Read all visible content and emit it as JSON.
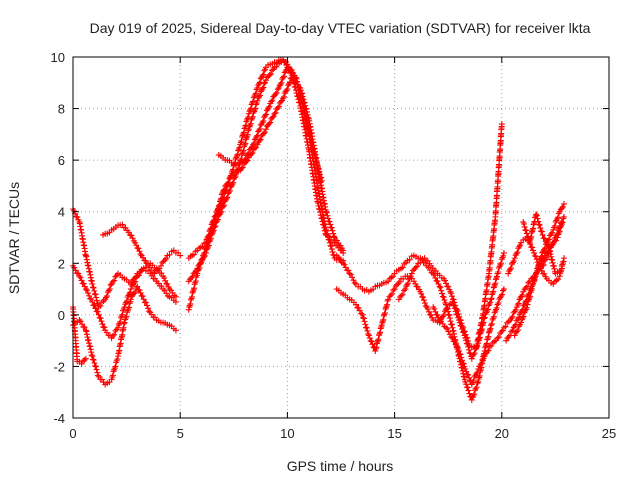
{
  "chart_data": {
    "type": "scatter",
    "title": "Day 019 of 2025, Sidereal Day-to-day VTEC variation (SDTVAR) for receiver lkta",
    "xlabel": "GPS time / hours",
    "ylabel": "SDTVAR / TECUs",
    "xlim": [
      0,
      25
    ],
    "ylim": [
      -4,
      10
    ],
    "xticks": [
      0,
      5,
      10,
      15,
      20,
      25
    ],
    "yticks": [
      -4,
      -2,
      0,
      2,
      4,
      6,
      8,
      10
    ],
    "grid": true,
    "marker": "+",
    "color": "#ff0000",
    "series": [
      {
        "x": [
          0.0,
          0.3,
          0.6,
          0.9,
          1.2,
          1.5,
          1.8,
          2.1,
          2.4,
          2.7,
          3.0,
          3.3,
          3.6,
          3.9,
          4.2,
          4.5,
          4.8
        ],
        "y": [
          4.1,
          3.6,
          2.3,
          1.2,
          0.3,
          0.6,
          1.2,
          1.6,
          1.4,
          1.2,
          1.6,
          1.8,
          1.6,
          1.3,
          1.0,
          0.7,
          0.5
        ]
      },
      {
        "x": [
          0.0,
          0.3,
          0.6,
          0.9,
          1.2,
          1.5,
          1.8,
          2.1,
          2.4,
          2.7,
          3.0,
          3.3,
          3.6,
          3.9,
          4.2,
          4.5,
          4.8
        ],
        "y": [
          1.9,
          1.5,
          1.0,
          0.5,
          0.0,
          -0.6,
          -0.9,
          -0.5,
          0.3,
          1.0,
          1.5,
          1.8,
          2.0,
          1.8,
          1.5,
          1.0,
          0.7
        ]
      },
      {
        "x": [
          0.0,
          0.3,
          0.6,
          0.9,
          1.2,
          1.5,
          1.8,
          2.1,
          2.4,
          2.7,
          3.0,
          3.3,
          3.6,
          3.9,
          4.2,
          4.5,
          4.8
        ],
        "y": [
          -0.4,
          -0.2,
          -0.6,
          -1.6,
          -2.4,
          -2.7,
          -2.5,
          -1.6,
          -0.3,
          0.6,
          1.1,
          0.6,
          0.1,
          -0.2,
          -0.3,
          -0.4,
          -0.6
        ]
      },
      {
        "x": [
          0.0,
          0.2,
          0.4,
          0.6
        ],
        "y": [
          0.3,
          -1.8,
          -1.9,
          -1.7
        ]
      },
      {
        "x": [
          1.4,
          1.7,
          2.0,
          2.3,
          2.6,
          2.9,
          3.2,
          3.5,
          3.8,
          4.1,
          4.4,
          4.7,
          5.0
        ],
        "y": [
          3.1,
          3.2,
          3.4,
          3.5,
          3.2,
          2.8,
          2.3,
          1.9,
          1.6,
          1.9,
          2.3,
          2.5,
          2.3
        ]
      },
      {
        "x": [
          5.4,
          5.8,
          6.2,
          6.6,
          7.0,
          7.4,
          7.8,
          8.2,
          8.6,
          9.0,
          9.4,
          9.8,
          10.2,
          10.6,
          11.0,
          11.4,
          11.8,
          12.2,
          12.6
        ],
        "y": [
          2.2,
          2.5,
          2.8,
          3.8,
          4.5,
          5.5,
          6.6,
          7.8,
          8.8,
          9.6,
          9.8,
          9.9,
          9.5,
          8.6,
          7.0,
          5.0,
          3.3,
          2.2,
          2.1
        ]
      },
      {
        "x": [
          5.4,
          5.8,
          6.2,
          6.6,
          7.0,
          7.4,
          7.8,
          8.2,
          8.6,
          9.0,
          9.4,
          9.8,
          10.2,
          10.6,
          11.0,
          11.4,
          11.8,
          12.2,
          12.6
        ],
        "y": [
          1.3,
          1.8,
          2.4,
          3.4,
          4.2,
          5.0,
          5.9,
          7.2,
          8.3,
          9.1,
          9.6,
          9.9,
          9.3,
          8.1,
          6.4,
          4.4,
          3.1,
          2.8,
          2.4
        ]
      },
      {
        "x": [
          5.4,
          5.8,
          6.2,
          6.6,
          7.0,
          7.4,
          7.8,
          8.2,
          8.6,
          9.0,
          9.4,
          9.8,
          10.2,
          10.6,
          11.0,
          11.4,
          11.8,
          12.2,
          12.6
        ],
        "y": [
          0.2,
          1.6,
          2.6,
          3.6,
          4.8,
          5.4,
          5.6,
          6.1,
          6.6,
          7.2,
          7.8,
          8.4,
          9.2,
          8.8,
          7.6,
          5.8,
          4.0,
          3.0,
          2.5
        ]
      },
      {
        "x": [
          6.8,
          7.2,
          7.6,
          8.0,
          8.4,
          8.8,
          9.2,
          9.6,
          10.0,
          10.4,
          10.8,
          11.2,
          11.6
        ],
        "y": [
          6.2,
          6.0,
          5.8,
          6.0,
          6.6,
          7.4,
          8.2,
          8.8,
          9.6,
          9.2,
          8.0,
          6.4,
          5.2
        ]
      },
      {
        "x": [
          12.3,
          12.6,
          12.9,
          13.2,
          13.5,
          13.8,
          14.1,
          14.4,
          14.7,
          15.0,
          15.3,
          15.6,
          15.9,
          16.2,
          16.5,
          16.8,
          17.1,
          17.4,
          17.7,
          18.0,
          18.3,
          18.6,
          18.9,
          19.2,
          19.5,
          19.8,
          20.1
        ],
        "y": [
          2.3,
          2.0,
          1.6,
          1.2,
          1.0,
          0.9,
          1.1,
          1.2,
          1.3,
          1.6,
          1.8,
          2.1,
          2.3,
          2.2,
          1.9,
          1.6,
          1.1,
          0.4,
          -0.5,
          -1.6,
          -2.6,
          -3.3,
          -2.6,
          -1.4,
          -0.4,
          0.4,
          1.0
        ]
      },
      {
        "x": [
          12.3,
          12.6,
          12.9,
          13.2,
          13.5,
          13.8,
          14.1,
          14.4,
          14.7,
          15.0,
          15.3,
          15.6,
          15.9,
          16.2,
          16.5,
          16.8,
          17.1,
          17.4,
          17.7,
          18.0,
          18.3,
          18.6,
          18.9,
          19.2,
          19.5,
          19.8,
          20.1
        ],
        "y": [
          1.0,
          0.8,
          0.6,
          0.4,
          0.0,
          -0.8,
          -1.4,
          -0.4,
          0.6,
          1.0,
          1.4,
          1.5,
          1.3,
          0.9,
          0.3,
          -0.2,
          -0.3,
          0.2,
          0.5,
          -0.2,
          -0.9,
          -1.7,
          -1.1,
          -0.1,
          0.6,
          1.6,
          2.4
        ]
      },
      {
        "x": [
          15.2,
          15.5,
          15.8,
          16.1,
          16.4,
          16.7,
          17.0,
          17.3,
          17.6,
          17.9,
          18.2,
          18.5,
          18.8,
          19.1,
          19.4,
          19.7,
          20.0
        ],
        "y": [
          0.6,
          1.0,
          1.6,
          2.0,
          2.2,
          1.9,
          1.6,
          1.4,
          0.9,
          0.2,
          -0.5,
          -1.2,
          -1.3,
          -0.1,
          1.6,
          3.8,
          7.4
        ]
      },
      {
        "x": [
          16.8,
          17.1,
          17.4,
          17.7,
          18.0,
          18.3,
          18.6,
          18.9,
          19.2,
          19.5,
          19.8,
          20.1,
          20.4,
          20.7,
          21.0,
          21.3,
          21.6,
          21.9,
          22.2,
          22.5,
          22.8
        ],
        "y": [
          0.3,
          -0.2,
          -0.5,
          -0.9,
          -1.4,
          -2.1,
          -2.7,
          -2.1,
          -1.6,
          -1.2,
          -0.9,
          -0.5,
          -0.2,
          0.3,
          0.9,
          1.3,
          1.6,
          1.9,
          2.4,
          3.0,
          3.6
        ]
      },
      {
        "x": [
          20.2,
          20.5,
          20.8,
          21.1,
          21.4,
          21.7,
          22.0,
          22.3,
          22.6,
          22.9
        ],
        "y": [
          -1.0,
          -0.6,
          -0.1,
          0.5,
          1.1,
          1.8,
          2.3,
          2.7,
          3.0,
          3.8
        ]
      },
      {
        "x": [
          20.3,
          20.6,
          20.9,
          21.2,
          21.5,
          21.8,
          22.1,
          22.4,
          22.7,
          22.9
        ],
        "y": [
          1.6,
          2.2,
          2.8,
          3.0,
          2.4,
          1.8,
          1.4,
          1.2,
          1.5,
          2.2
        ]
      },
      {
        "x": [
          20.6,
          20.9,
          21.2,
          21.5,
          21.8,
          22.1,
          22.4,
          22.7,
          22.9
        ],
        "y": [
          -0.8,
          -0.3,
          0.4,
          1.3,
          2.2,
          2.8,
          3.3,
          4.0,
          4.3
        ]
      },
      {
        "x": [
          21.0,
          21.3,
          21.6,
          21.9,
          22.2,
          22.5,
          22.8
        ],
        "y": [
          3.6,
          2.8,
          3.9,
          3.1,
          2.6,
          1.6,
          1.8
        ]
      }
    ]
  }
}
